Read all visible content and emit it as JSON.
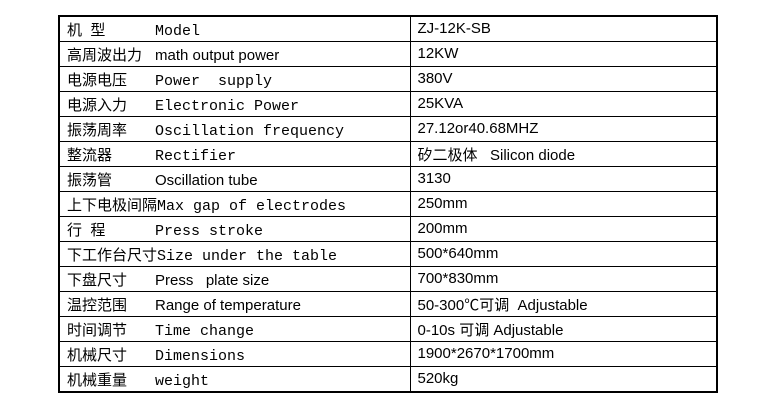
{
  "colors": {
    "border": "#000000",
    "text": "#000000",
    "background": "#ffffff"
  },
  "table": {
    "rows": [
      {
        "zh": "机  型",
        "en": "Model",
        "value": "ZJ-12K-SB"
      },
      {
        "zh": "高周波出力",
        "en": "math output power",
        "value": "12KW"
      },
      {
        "zh": "电源电压",
        "en": "Power  supply",
        "value": "380V"
      },
      {
        "zh": "电源入力",
        "en": "Electronic Power",
        "value": "25KVA"
      },
      {
        "zh": "振荡周率",
        "en": "Oscillation frequency",
        "value": "27.12or40.68MHZ"
      },
      {
        "zh": "整流器",
        "en": "Rectifier",
        "value": "矽二极体   Silicon diode"
      },
      {
        "zh": "振荡管",
        "en": "Oscillation tube",
        "value": "3130"
      },
      {
        "zh": "上下电极间隔",
        "en": "Max gap of electrodes",
        "value": "250mm"
      },
      {
        "zh": "行  程",
        "en": "Press stroke",
        "value": "200mm"
      },
      {
        "zh": "下工作台尺寸",
        "en": "Size under the table",
        "value": "500*640mm"
      },
      {
        "zh": "下盘尺寸",
        "en": "Press   plate size",
        "value": "700*830mm"
      },
      {
        "zh": "温控范围",
        "en": "Range of temperature",
        "value": "50-300℃可调  Adjustable"
      },
      {
        "zh": "时间调节",
        "en": "Time change",
        "value": "0-10s 可调 Adjustable"
      },
      {
        "zh": "机械尺寸",
        "en": "Dimensions",
        "value": "1900*2670*1700mm"
      },
      {
        "zh": "机械重量",
        "en": "weight",
        "value": "520kg"
      }
    ]
  }
}
